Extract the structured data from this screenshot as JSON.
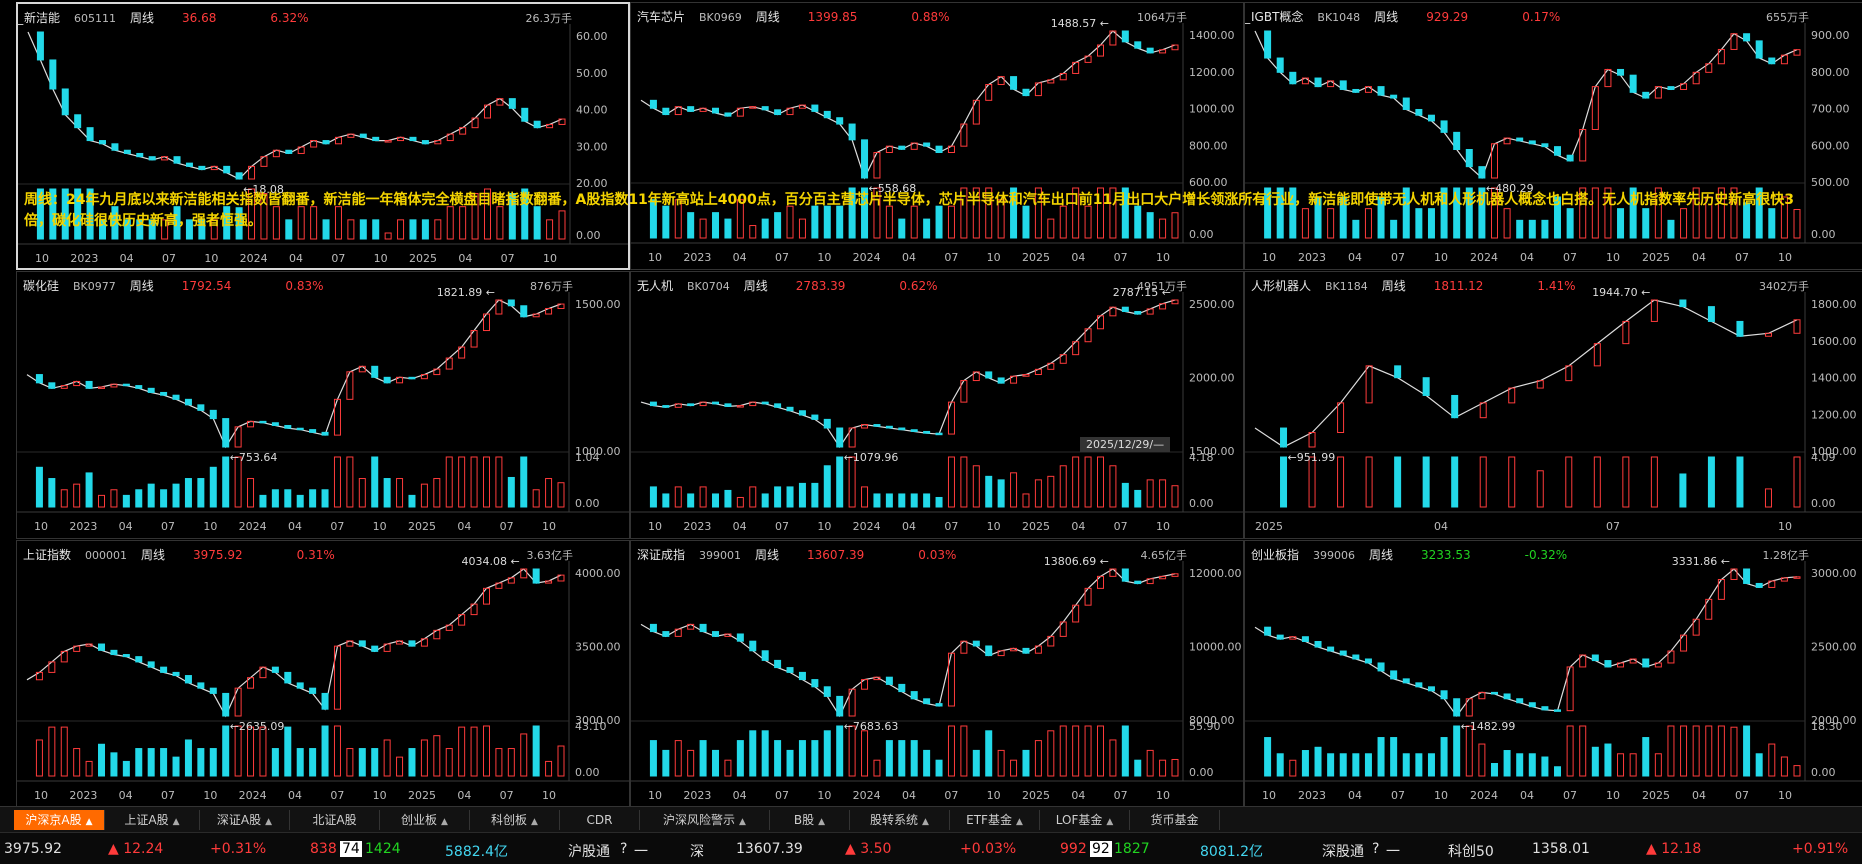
{
  "panels": [
    {
      "name": "新洁能",
      "code": "605111",
      "period": "周线",
      "price": "36.68",
      "change": "6.32%",
      "trend": "up",
      "vol": "26.3万手",
      "y_ticks": [
        "60.00",
        "50.00",
        "40.00",
        "30.00",
        "20.00"
      ],
      "vol_ticks": [
        "0.00"
      ],
      "hi": "63.67",
      "lo": "18.08",
      "x_labels": [
        "10",
        "2023",
        "04",
        "07",
        "10",
        "2024",
        "04",
        "07",
        "10",
        "2025",
        "04",
        "07",
        "10"
      ],
      "series": [
        63.67,
        55,
        46,
        38,
        34,
        30,
        29,
        27,
        26,
        25,
        24,
        25,
        23,
        22,
        21,
        22,
        20,
        18.08,
        22,
        25,
        27,
        26,
        28,
        30,
        29,
        31,
        32,
        31,
        30,
        30,
        31,
        30,
        29,
        30,
        32,
        34,
        37,
        41,
        43,
        40,
        36,
        34,
        35,
        36.68
      ]
    },
    {
      "name": "汽车芯片",
      "code": "BK0969",
      "period": "周线",
      "price": "1399.85",
      "change": "0.88%",
      "trend": "up",
      "vol": "1064万手",
      "y_ticks": [
        "1400.00",
        "1200.00",
        "1000.00",
        "800.00",
        "600.00"
      ],
      "vol_ticks": [
        "0.00"
      ],
      "hi": "1488.57",
      "lo": "558.68",
      "x_labels": [
        "10",
        "2023",
        "04",
        "07",
        "10",
        "2024",
        "04",
        "07",
        "10",
        "2025",
        "04",
        "07",
        "10"
      ],
      "series": [
        1050,
        1000,
        960,
        1010,
        980,
        1000,
        970,
        950,
        1000,
        1010,
        990,
        960,
        1000,
        1020,
        980,
        940,
        900,
        800,
        558.68,
        720,
        760,
        740,
        780,
        760,
        720,
        760,
        900,
        1050,
        1150,
        1200,
        1120,
        1080,
        1160,
        1180,
        1220,
        1290,
        1330,
        1400,
        1488.57,
        1420,
        1380,
        1350,
        1370,
        1399.85
      ]
    },
    {
      "name": "IGBT概念",
      "code": "BK1048",
      "period": "周线",
      "price": "929.29",
      "change": "0.17%",
      "trend": "up",
      "vol": "655万手",
      "y_ticks": [
        "900.00",
        "800.00",
        "700.00",
        "600.00",
        "500.00"
      ],
      "vol_ticks": [
        "0.00"
      ],
      "hi": "994.56",
      "lo": "480.29",
      "x_labels": [
        "10",
        "2023",
        "04",
        "07",
        "10",
        "2024",
        "04",
        "07",
        "10",
        "2025",
        "04",
        "07",
        "10"
      ],
      "series": [
        994.56,
        900,
        850,
        810,
        830,
        800,
        820,
        790,
        780,
        800,
        770,
        760,
        720,
        700,
        680,
        640,
        580,
        520,
        480.29,
        600,
        620,
        610,
        600,
        590,
        560,
        540,
        650,
        800,
        860,
        840,
        780,
        760,
        800,
        790,
        810,
        850,
        880,
        930,
        985,
        960,
        900,
        880,
        910,
        929.29
      ]
    },
    {
      "name": "碳化硅",
      "code": "BK0977",
      "period": "周线",
      "price": "1792.54",
      "change": "0.83%",
      "trend": "up",
      "vol": "876万手",
      "y_ticks": [
        "1500.00",
        "1000.00"
      ],
      "vol_ticks": [
        "1.04",
        "0.00"
      ],
      "hi": "1821.89",
      "lo": "753.64",
      "x_labels": [
        "10",
        "2023",
        "04",
        "07",
        "10",
        "2024",
        "04",
        "07",
        "10",
        "2025",
        "04",
        "07",
        "10"
      ],
      "series": [
        1280,
        1220,
        1180,
        1200,
        1230,
        1180,
        1190,
        1210,
        1200,
        1180,
        1150,
        1130,
        1100,
        1060,
        1020,
        960,
        753.64,
        900,
        940,
        930,
        910,
        890,
        880,
        860,
        840,
        1100,
        1300,
        1340,
        1260,
        1220,
        1260,
        1250,
        1280,
        1320,
        1400,
        1480,
        1600,
        1720,
        1821.89,
        1780,
        1700,
        1720,
        1760,
        1792.54
      ]
    },
    {
      "name": "无人机",
      "code": "BK0704",
      "period": "周线",
      "price": "2783.39",
      "change": "0.62%",
      "trend": "up",
      "vol": "4951万手",
      "y_ticks": [
        "2500.00",
        "2000.00",
        "1500.00"
      ],
      "vol_ticks": [
        "4.18",
        "0.00"
      ],
      "hi": "2787.15",
      "lo": "1079.96",
      "x_labels": [
        "10",
        "2023",
        "04",
        "07",
        "10",
        "2024",
        "04",
        "07",
        "10",
        "2025",
        "04",
        "07",
        "10"
      ],
      "series": [
        1600,
        1560,
        1540,
        1580,
        1560,
        1600,
        1580,
        1550,
        1560,
        1600,
        1580,
        1540,
        1500,
        1450,
        1400,
        1300,
        1079.96,
        1300,
        1340,
        1320,
        1300,
        1280,
        1260,
        1240,
        1230,
        1600,
        1850,
        1950,
        1880,
        1820,
        1900,
        1920,
        1980,
        2050,
        2150,
        2300,
        2450,
        2600,
        2700,
        2650,
        2620,
        2680,
        2740,
        2783.39
      ]
    },
    {
      "name": "人形机器人",
      "code": "BK1184",
      "period": "周线",
      "price": "1811.12",
      "change": "1.41%",
      "trend": "up",
      "vol": "3402万手",
      "y_ticks": [
        "1800.00",
        "1600.00",
        "1400.00",
        "1200.00",
        "1000.00"
      ],
      "vol_ticks": [
        "4.09",
        "0.00"
      ],
      "hi": "1944.70",
      "lo": "951.99",
      "x_labels": [
        "2025",
        "04",
        "07",
        "10"
      ],
      "series": [
        1080,
        951.99,
        1050,
        1250,
        1500,
        1420,
        1300,
        1150,
        1250,
        1350,
        1400,
        1500,
        1650,
        1800,
        1944.7,
        1900,
        1800,
        1700,
        1720,
        1811.12
      ]
    },
    {
      "name": "上证指数",
      "code": "000001",
      "period": "周线",
      "price": "3975.92",
      "change": "0.31%",
      "trend": "up",
      "vol": "3.63亿手",
      "y_ticks": [
        "4000.00",
        "3500.00",
        "3000.00"
      ],
      "vol_ticks": [
        "43.10",
        "0.00"
      ],
      "hi": "4034.08",
      "lo": "2635.09",
      "x_labels": [
        "10",
        "2023",
        "04",
        "07",
        "10",
        "2024",
        "04",
        "07",
        "10",
        "2025",
        "04",
        "07",
        "10"
      ],
      "series": [
        2980,
        3050,
        3150,
        3250,
        3300,
        3320,
        3260,
        3220,
        3200,
        3150,
        3100,
        3050,
        3020,
        2950,
        2900,
        2850,
        2635.09,
        2900,
        3000,
        3100,
        3050,
        2950,
        2900,
        2850,
        2700,
        3300,
        3350,
        3300,
        3250,
        3320,
        3350,
        3300,
        3370,
        3450,
        3500,
        3600,
        3700,
        3850,
        3900,
        3950,
        4034.08,
        3900,
        3920,
        3975.92
      ]
    },
    {
      "name": "深证成指",
      "code": "399001",
      "period": "周线",
      "price": "13607.39",
      "change": "0.03%",
      "trend": "up",
      "vol": "4.65亿手",
      "y_ticks": [
        "12000.00",
        "10000.00",
        "8000.00"
      ],
      "vol_ticks": [
        "55.90",
        "0.00"
      ],
      "hi": "13806.69",
      "lo": "7683.63",
      "x_labels": [
        "10",
        "2023",
        "04",
        "07",
        "10",
        "2024",
        "04",
        "07",
        "10",
        "2025",
        "04",
        "07",
        "10"
      ],
      "series": [
        11500,
        11200,
        11000,
        11300,
        11500,
        11200,
        11000,
        11100,
        10800,
        10400,
        10000,
        9700,
        9500,
        9200,
        8900,
        8500,
        7683.63,
        8800,
        9200,
        9300,
        9000,
        8700,
        8400,
        8200,
        8100,
        10300,
        10800,
        10600,
        10200,
        10400,
        10500,
        10300,
        10600,
        11000,
        11600,
        12300,
        13000,
        13500,
        13806.69,
        13300,
        13200,
        13400,
        13500,
        13607.39
      ]
    },
    {
      "name": "创业板指",
      "code": "399006",
      "period": "周线",
      "price": "3233.53",
      "change": "-0.32%",
      "trend": "down",
      "vol": "1.28亿手",
      "y_ticks": [
        "3000.00",
        "2500.00",
        "2000.00"
      ],
      "vol_ticks": [
        "18.30",
        "0.00"
      ],
      "hi": "3331.86",
      "lo": "1482.99",
      "x_labels": [
        "10",
        "2023",
        "04",
        "07",
        "10",
        "2024",
        "04",
        "07",
        "10",
        "2025",
        "04",
        "07",
        "10"
      ],
      "series": [
        2600,
        2500,
        2450,
        2480,
        2420,
        2350,
        2300,
        2250,
        2200,
        2150,
        2050,
        1950,
        1900,
        1850,
        1800,
        1700,
        1482.99,
        1700,
        1780,
        1760,
        1700,
        1650,
        1600,
        1560,
        1550,
        2100,
        2250,
        2180,
        2100,
        2150,
        2200,
        2100,
        2150,
        2300,
        2500,
        2700,
        2950,
        3200,
        3331.86,
        3150,
        3100,
        3180,
        3220,
        3233.53
      ]
    }
  ],
  "date_tooltip": "2025/12/29/—",
  "note": "周线：24年九月底以来新洁能相关指数皆翻番，新洁能一年箱体完全横盘目睹指数翻番，A股指数11年新高站上4000点，百分百主营芯片半导体，芯片半导体和汽车出口前11月出口大户增长领涨所有行业，新洁能即使带无人机和人形机器人概念也白搭。无人机指数率先历史新高很快3倍，碳化硅很快历史新高，强者恒强。",
  "tabs": [
    {
      "label": "沪深京A股",
      "caret": true,
      "active": true
    },
    {
      "label": "上证A股",
      "caret": true
    },
    {
      "label": "深证A股",
      "caret": true
    },
    {
      "label": "北证A股",
      "caret": false
    },
    {
      "label": "创业板",
      "caret": true
    },
    {
      "label": "科创板",
      "caret": true
    },
    {
      "label": "CDR",
      "caret": false
    },
    {
      "label": "沪深风险警示",
      "caret": true
    },
    {
      "label": "B股",
      "caret": true
    },
    {
      "label": "股转系统",
      "caret": true
    },
    {
      "label": "ETF基金",
      "caret": true
    },
    {
      "label": "LOF基金",
      "caret": true
    },
    {
      "label": "货币基金",
      "caret": false
    }
  ],
  "status": {
    "sh_index": "3975.92",
    "sh_change": "▲ 12.24",
    "sh_pct": "+0.31%",
    "sh_up": "838",
    "sh_flat": "74",
    "sh_down": "1424",
    "sh_amount": "5882.4亿",
    "hgt_label": "沪股通",
    "hgt_value": "一",
    "sz_label": "深",
    "sz_index": "13607.39",
    "sz_change": "▲ 3.50",
    "sz_pct": "+0.03%",
    "sz_up": "992",
    "sz_flat": "92",
    "sz_down": "1827",
    "sz_amount": "8081.2亿",
    "sgt_label": "深股通",
    "sgt_value": "一",
    "kc_label": "科创50",
    "kc_index": "1358.01",
    "kc_change": "▲ 12.18",
    "kc_pct": "+0.91%"
  }
}
